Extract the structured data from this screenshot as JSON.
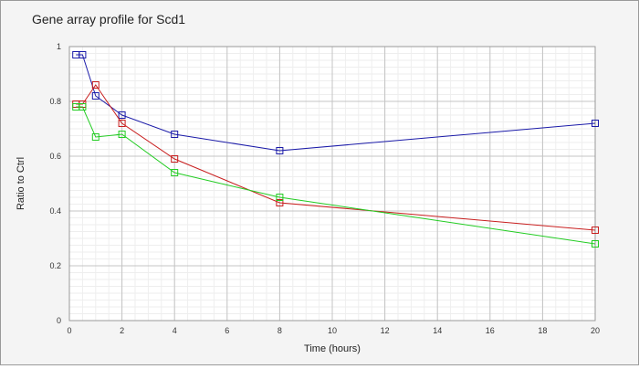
{
  "chart_data": {
    "type": "line",
    "title": "Gene array profile for Scd1",
    "xlabel": "Time (hours)",
    "ylabel": "Ratio to Ctrl",
    "xlim": [
      0,
      20
    ],
    "ylim": [
      0,
      1
    ],
    "x_ticks": [
      "0",
      "2",
      "4",
      "6",
      "8",
      "10",
      "12",
      "14",
      "16",
      "18",
      "20"
    ],
    "y_ticks": [
      "0",
      "0.2",
      "0.4",
      "0.6",
      "0.8",
      "1"
    ],
    "grid": true,
    "marker": "square",
    "series": [
      {
        "color": "#1a1aa8",
        "x": [
          0.25,
          0.5,
          1,
          2,
          4,
          8,
          20
        ],
        "y": [
          0.97,
          0.97,
          0.82,
          0.75,
          0.68,
          0.62,
          0.72
        ]
      },
      {
        "color": "#c81e1e",
        "x": [
          0.25,
          0.5,
          1,
          2,
          4,
          8,
          20
        ],
        "y": [
          0.79,
          0.79,
          0.86,
          0.72,
          0.59,
          0.43,
          0.33
        ]
      },
      {
        "color": "#22cc22",
        "x": [
          0.25,
          0.5,
          1,
          2,
          4,
          8,
          20
        ],
        "y": [
          0.78,
          0.78,
          0.67,
          0.68,
          0.54,
          0.45,
          0.28
        ]
      }
    ]
  }
}
